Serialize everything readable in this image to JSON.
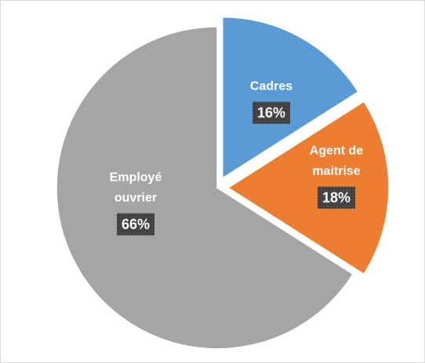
{
  "chart_data": {
    "type": "pie",
    "categories": [
      "Cadres",
      "Agent de maitrise",
      "Employé ouvrier"
    ],
    "values": [
      16,
      18,
      66
    ],
    "value_labels": [
      "16%",
      "18%",
      "66%"
    ],
    "colors": [
      "#5b9bd5",
      "#ed7d31",
      "#a5a5a5"
    ]
  }
}
